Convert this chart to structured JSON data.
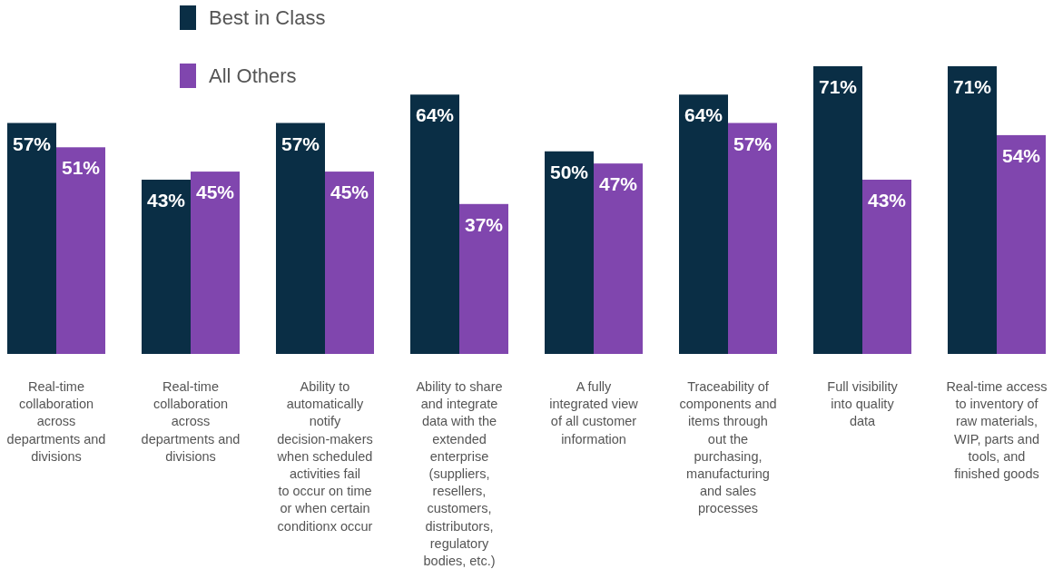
{
  "chart_data": {
    "type": "bar",
    "categories": [
      "Real-time collaboration across departments and divisions",
      "Real-time collaboration across departments and divisions",
      "Ability to automatically notify decision-makers when scheduled activities fail to occur on time or when certain conditionx occur",
      "Ability to share and integrate data with the extended enterprise (suppliers, resellers, customers, distributors, regulatory bodies, etc.)",
      "A fully integrated view of all customer information",
      "Traceability of components and items through out the purchasing, manufacturing and sales processes",
      "Full visibility into quality data",
      "Real-time access to inventory of raw materials, WIP, parts and tools, and finished goods"
    ],
    "series": [
      {
        "name": "Best in Class",
        "color": "#0a2e45",
        "values": [
          57,
          43,
          57,
          64,
          50,
          64,
          71,
          71
        ],
        "value_labels": [
          "57%",
          "43%",
          "57%",
          "64%",
          "50%",
          "64%",
          "71%",
          "71%"
        ]
      },
      {
        "name": "All Others",
        "color": "#8046ae",
        "values": [
          51,
          45,
          45,
          37,
          47,
          57,
          43,
          54
        ],
        "value_labels": [
          "51%",
          "45%",
          "45%",
          "37%",
          "47%",
          "57%",
          "43%",
          "54%"
        ]
      }
    ],
    "legend": "top left"
  }
}
